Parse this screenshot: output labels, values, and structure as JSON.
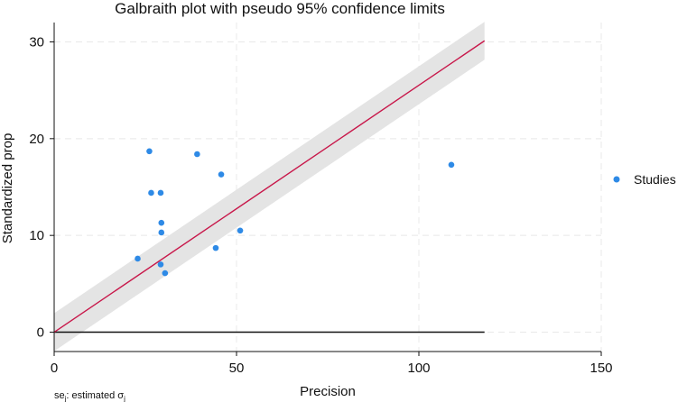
{
  "chart_data": {
    "type": "scatter",
    "title": "Galbraith plot with pseudo 95% confidence limits",
    "xlabel": "Precision",
    "ylabel": "Standardized prop",
    "xlim": [
      0,
      150
    ],
    "ylim": [
      -2,
      32
    ],
    "xticks": [
      0,
      50,
      100,
      150
    ],
    "yticks": [
      0,
      10,
      20,
      30
    ],
    "grid": true,
    "legend": {
      "position": "right",
      "entries": [
        "Studies"
      ]
    },
    "note": {
      "prefix": "se",
      "prefix_sub": "j",
      "middle": ": estimated σ",
      "suffix_sub": "j"
    },
    "colors": {
      "points": "#2e8ae6",
      "fit_line": "#c8174a",
      "band": "#e4e4e4",
      "zero_line": "#111111",
      "grid": "#e8e8e8",
      "axis": "#111111"
    },
    "fit": {
      "intercept": 0,
      "slope": 0.2552,
      "x_start": 0,
      "x_end": 118
    },
    "band": {
      "halfwidth": 1.96
    },
    "zero_line": {
      "y": 0,
      "x_start": 0,
      "x_end": 118
    },
    "series": [
      {
        "name": "Studies",
        "points": [
          {
            "x": 22.9,
            "y": 7.6
          },
          {
            "x": 26.1,
            "y": 18.7
          },
          {
            "x": 26.6,
            "y": 14.4
          },
          {
            "x": 29.2,
            "y": 14.4
          },
          {
            "x": 29.4,
            "y": 11.3
          },
          {
            "x": 29.4,
            "y": 10.3
          },
          {
            "x": 29.2,
            "y": 7.0
          },
          {
            "x": 30.4,
            "y": 6.1
          },
          {
            "x": 39.2,
            "y": 18.4
          },
          {
            "x": 44.3,
            "y": 8.7
          },
          {
            "x": 45.8,
            "y": 16.3
          },
          {
            "x": 51.0,
            "y": 10.5
          },
          {
            "x": 108.9,
            "y": 17.3
          }
        ]
      }
    ]
  }
}
